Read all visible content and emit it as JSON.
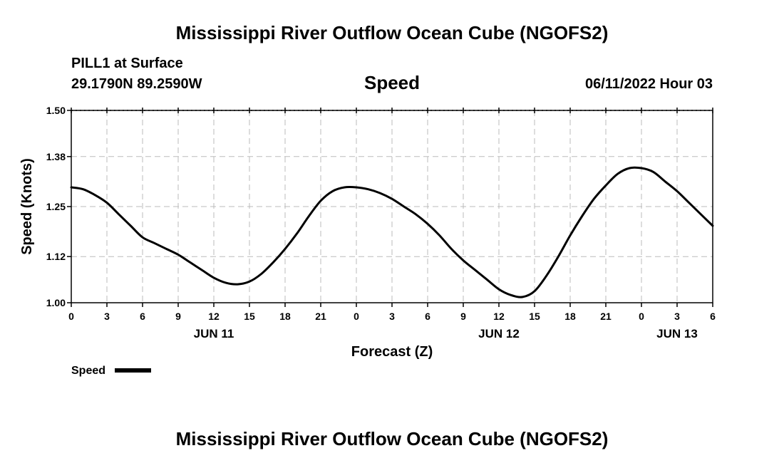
{
  "page": {
    "title": "Mississippi River Outflow Ocean Cube (NGOFS2)",
    "title_bottom": "Mississippi River Outflow Ocean Cube (NGOFS2)",
    "station": "PILL1 at Surface",
    "coords": "29.1790N  89.2590W",
    "variable": "Speed",
    "timestamp": "06/11/2022 Hour 03",
    "legend_label": "Speed"
  },
  "chart_data": {
    "type": "line",
    "title": "Speed",
    "xlabel": "Forecast (Z)",
    "ylabel": "Speed (Knots)",
    "x_unit": "hours from 2022-06-11 00Z",
    "xlim": [
      0,
      54
    ],
    "ylim": [
      1.0,
      1.5
    ],
    "y_ticks": [
      1.0,
      1.12,
      1.25,
      1.38,
      1.5
    ],
    "y_tick_labels": [
      "1.00",
      "1.12",
      "1.25",
      "1.38",
      "1.50"
    ],
    "x_ticks": [
      0,
      3,
      6,
      9,
      12,
      15,
      18,
      21,
      24,
      27,
      30,
      33,
      36,
      39,
      42,
      45,
      48,
      51,
      54
    ],
    "x_tick_labels": [
      "0",
      "3",
      "6",
      "9",
      "12",
      "15",
      "18",
      "21",
      "0",
      "3",
      "6",
      "9",
      "12",
      "15",
      "18",
      "21",
      "0",
      "3",
      "6"
    ],
    "date_labels": [
      {
        "x": 12,
        "label": "JUN 11"
      },
      {
        "x": 36,
        "label": "JUN 12"
      },
      {
        "x": 51,
        "label": "JUN 13"
      }
    ],
    "grid": true,
    "legend": "bottom-left",
    "series": [
      {
        "name": "Speed",
        "color": "#000000",
        "x": [
          0,
          1,
          2,
          3,
          4,
          5,
          6,
          7,
          8,
          9,
          10,
          11,
          12,
          13,
          14,
          15,
          16,
          17,
          18,
          19,
          20,
          21,
          22,
          23,
          24,
          25,
          26,
          27,
          28,
          29,
          30,
          31,
          32,
          33,
          34,
          35,
          36,
          37,
          38,
          39,
          40,
          41,
          42,
          43,
          44,
          45,
          46,
          47,
          48,
          49,
          50,
          51,
          52,
          53,
          54
        ],
        "values": [
          1.3,
          1.295,
          1.28,
          1.26,
          1.23,
          1.2,
          1.17,
          1.155,
          1.14,
          1.125,
          1.105,
          1.085,
          1.065,
          1.052,
          1.048,
          1.055,
          1.075,
          1.105,
          1.14,
          1.18,
          1.225,
          1.265,
          1.29,
          1.3,
          1.3,
          1.295,
          1.285,
          1.27,
          1.25,
          1.23,
          1.205,
          1.175,
          1.14,
          1.11,
          1.085,
          1.06,
          1.035,
          1.02,
          1.015,
          1.03,
          1.07,
          1.12,
          1.175,
          1.225,
          1.27,
          1.305,
          1.335,
          1.35,
          1.35,
          1.34,
          1.315,
          1.29,
          1.26,
          1.23,
          1.2
        ]
      }
    ]
  }
}
